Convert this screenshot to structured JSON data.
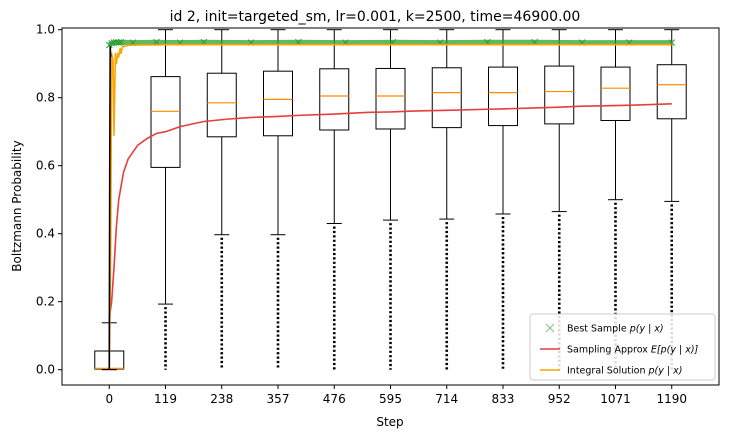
{
  "chart_data": {
    "type": "box-with-lines",
    "title": "id 2, init=targeted_sm, lr=0.001, k=2500, time=46900.00",
    "xlabel": "Step",
    "ylabel": "Boltzmann Probability",
    "xlim": [
      -100,
      1290
    ],
    "ylim": [
      -0.045,
      1.005
    ],
    "x_ticks": [
      0,
      119,
      238,
      357,
      476,
      595,
      714,
      833,
      952,
      1071,
      1190
    ],
    "x_tick_labels": [
      "0",
      "119",
      "238",
      "357",
      "476",
      "595",
      "714",
      "833",
      "952",
      "1071",
      "1190"
    ],
    "y_ticks": [
      0.0,
      0.2,
      0.4,
      0.6,
      0.8,
      1.0
    ],
    "y_tick_labels": [
      "0.0",
      "0.2",
      "0.4",
      "0.6",
      "0.8",
      "1.0"
    ],
    "boxes": [
      {
        "x": 0,
        "q1": 0.002,
        "median": 0.004,
        "q3": 0.055,
        "whisker_low": 0.0,
        "whisker_high": 0.138,
        "outlier_min": null
      },
      {
        "x": 119,
        "q1": 0.595,
        "median": 0.76,
        "q3": 0.862,
        "whisker_low": 0.193,
        "whisker_high": 1.0,
        "outlier_min": 0.0
      },
      {
        "x": 238,
        "q1": 0.685,
        "median": 0.785,
        "q3": 0.872,
        "whisker_low": 0.397,
        "whisker_high": 1.0,
        "outlier_min": 0.0
      },
      {
        "x": 357,
        "q1": 0.688,
        "median": 0.795,
        "q3": 0.878,
        "whisker_low": 0.397,
        "whisker_high": 1.0,
        "outlier_min": 0.0
      },
      {
        "x": 476,
        "q1": 0.705,
        "median": 0.805,
        "q3": 0.885,
        "whisker_low": 0.43,
        "whisker_high": 1.0,
        "outlier_min": 0.0
      },
      {
        "x": 595,
        "q1": 0.708,
        "median": 0.805,
        "q3": 0.886,
        "whisker_low": 0.44,
        "whisker_high": 1.0,
        "outlier_min": 0.0
      },
      {
        "x": 714,
        "q1": 0.712,
        "median": 0.815,
        "q3": 0.888,
        "whisker_low": 0.443,
        "whisker_high": 1.0,
        "outlier_min": 0.0
      },
      {
        "x": 833,
        "q1": 0.718,
        "median": 0.815,
        "q3": 0.89,
        "whisker_low": 0.458,
        "whisker_high": 1.0,
        "outlier_min": 0.0
      },
      {
        "x": 952,
        "q1": 0.723,
        "median": 0.818,
        "q3": 0.893,
        "whisker_low": 0.465,
        "whisker_high": 1.0,
        "outlier_min": 0.0
      },
      {
        "x": 1071,
        "q1": 0.733,
        "median": 0.828,
        "q3": 0.89,
        "whisker_low": 0.5,
        "whisker_high": 1.0,
        "outlier_min": 0.0
      },
      {
        "x": 1190,
        "q1": 0.738,
        "median": 0.838,
        "q3": 0.897,
        "whisker_low": 0.495,
        "whisker_high": 1.0,
        "outlier_min": 0.0
      }
    ],
    "series": [
      {
        "name": "Best Sample p(y | x)",
        "style": "x-markers",
        "color": "#2ca02c",
        "x": [
          0,
          5,
          10,
          15,
          20,
          25,
          50,
          100,
          150,
          200,
          300,
          400,
          500,
          600,
          700,
          800,
          900,
          1000,
          1100,
          1190
        ],
        "y": [
          0.955,
          0.96,
          0.962,
          0.963,
          0.962,
          0.963,
          0.962,
          0.963,
          0.962,
          0.963,
          0.962,
          0.963,
          0.962,
          0.963,
          0.962,
          0.963,
          0.963,
          0.962,
          0.962,
          0.962
        ]
      },
      {
        "name": "Sampling Approx E[p(y | x)]",
        "style": "line",
        "color": "#e83d3d",
        "x": [
          0,
          5,
          10,
          15,
          20,
          30,
          40,
          60,
          80,
          100,
          119,
          150,
          200,
          250,
          300,
          357,
          400,
          476,
          550,
          595,
          650,
          714,
          800,
          833,
          900,
          952,
          1000,
          1071,
          1130,
          1190
        ],
        "y": [
          0.15,
          0.2,
          0.3,
          0.42,
          0.5,
          0.58,
          0.62,
          0.66,
          0.68,
          0.695,
          0.7,
          0.715,
          0.73,
          0.737,
          0.742,
          0.745,
          0.748,
          0.752,
          0.757,
          0.758,
          0.761,
          0.763,
          0.766,
          0.767,
          0.77,
          0.772,
          0.775,
          0.777,
          0.779,
          0.782
        ]
      },
      {
        "name": "Integral Solution p(y | x)",
        "style": "line",
        "color": "#ffa500",
        "x": [
          0,
          3,
          5,
          8,
          10,
          13,
          15,
          18,
          20,
          23,
          25,
          28,
          30,
          35,
          40,
          60,
          100,
          119,
          200,
          300,
          400,
          500,
          600,
          700,
          800,
          900,
          1000,
          1100,
          1190
        ],
        "y": [
          0.0,
          0.35,
          0.93,
          0.91,
          0.69,
          0.93,
          0.9,
          0.93,
          0.92,
          0.945,
          0.93,
          0.95,
          0.95,
          0.952,
          0.954,
          0.955,
          0.955,
          0.956,
          0.956,
          0.956,
          0.956,
          0.956,
          0.956,
          0.956,
          0.956,
          0.956,
          0.956,
          0.956,
          0.956
        ]
      },
      {
        "name": "Initial spike",
        "style": "line",
        "color": "#000000",
        "x": [
          0,
          1,
          2,
          3
        ],
        "y": [
          0.0,
          0.6,
          0.95,
          0.92
        ]
      }
    ],
    "legend": {
      "position": "bottom-right",
      "entries": [
        {
          "marker": "x",
          "color": "#2ca02c",
          "label_main": "Best Sample ",
          "label_math": "p(y | x)"
        },
        {
          "marker": "line",
          "color": "#e83d3d",
          "label_main": "Sampling Approx ",
          "label_math": "E[p(y | x)]"
        },
        {
          "marker": "line",
          "color": "#ffa500",
          "label_main": "Integral Solution ",
          "label_math": "p(y | x)"
        }
      ]
    },
    "colors": {
      "box": "#000000",
      "median": "#ff8c00",
      "outlier": "#000000"
    }
  }
}
